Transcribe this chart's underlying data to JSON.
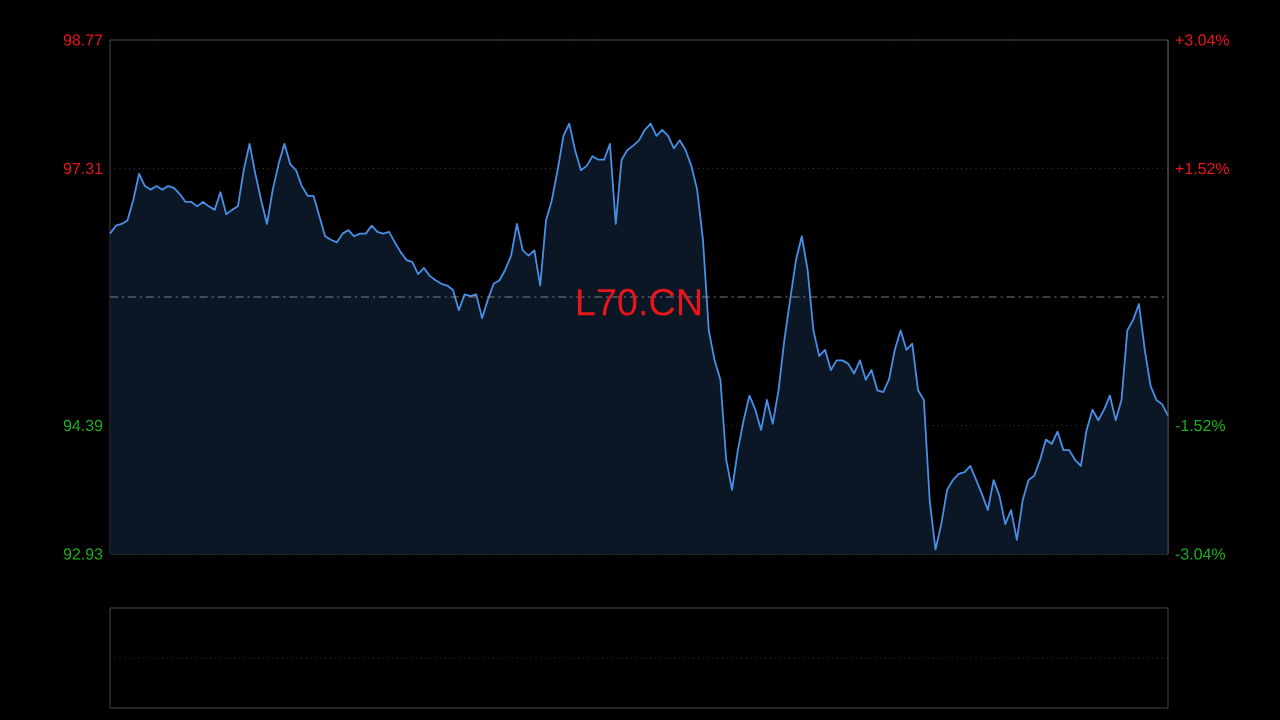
{
  "chart_data": {
    "type": "area",
    "annotations": [
      "L70.CN"
    ],
    "categories": [
      null,
      null,
      null,
      null,
      null,
      null,
      null,
      null,
      null,
      null,
      null,
      null,
      null,
      null,
      null,
      null,
      null,
      null,
      null,
      null,
      null,
      null,
      null,
      null,
      null,
      null,
      null,
      null,
      null,
      null,
      null,
      null,
      null,
      null,
      null,
      null,
      null,
      null,
      null,
      null,
      null,
      null,
      null,
      null,
      null,
      null,
      null,
      null,
      null,
      null,
      null,
      null,
      null,
      null,
      null,
      null,
      null,
      null,
      null,
      null,
      null,
      null,
      null,
      null,
      null,
      null,
      null,
      null,
      null,
      null,
      null,
      null,
      null,
      null,
      null,
      null,
      null,
      null,
      null,
      null,
      null,
      null,
      null,
      null,
      null,
      null,
      null,
      null,
      null,
      null,
      null,
      null,
      null,
      null,
      null,
      null,
      null,
      null,
      null,
      null,
      null,
      null,
      null,
      null,
      null,
      null,
      null,
      null,
      null,
      null,
      null,
      null,
      null,
      null,
      null,
      null,
      null,
      null,
      null,
      null,
      null,
      null,
      null,
      null,
      null,
      null,
      null,
      null,
      null,
      null,
      null,
      null,
      null,
      null,
      null,
      null,
      null,
      null,
      null,
      null,
      null,
      null,
      null,
      null,
      null,
      null,
      null,
      null,
      null,
      null,
      null,
      null,
      null,
      null,
      null,
      null,
      null,
      null,
      null,
      null,
      null,
      null,
      null,
      null,
      null,
      null,
      null,
      null,
      null,
      null,
      null,
      null,
      null,
      null,
      null,
      null,
      null,
      null,
      null,
      null,
      null,
      null,
      null
    ],
    "values": [
      96.57,
      96.66,
      96.68,
      96.72,
      96.95,
      97.25,
      97.11,
      97.07,
      97.11,
      97.07,
      97.11,
      97.09,
      97.02,
      96.93,
      96.93,
      96.88,
      96.93,
      96.88,
      96.84,
      97.04,
      96.79,
      96.84,
      96.88,
      97.29,
      97.59,
      97.25,
      96.95,
      96.68,
      97.07,
      97.36,
      97.59,
      97.36,
      97.29,
      97.11,
      97.0,
      97.0,
      96.77,
      96.54,
      96.5,
      96.47,
      96.57,
      96.61,
      96.54,
      96.57,
      96.57,
      96.66,
      96.59,
      96.57,
      96.59,
      96.47,
      96.36,
      96.27,
      96.25,
      96.11,
      96.18,
      96.09,
      96.04,
      96.0,
      95.98,
      95.93,
      95.7,
      95.88,
      95.86,
      95.88,
      95.61,
      95.82,
      96.0,
      96.04,
      96.16,
      96.32,
      96.68,
      96.38,
      96.32,
      96.38,
      95.98,
      96.72,
      96.95,
      97.29,
      97.68,
      97.82,
      97.52,
      97.29,
      97.34,
      97.45,
      97.41,
      97.41,
      97.59,
      96.68,
      97.41,
      97.52,
      97.57,
      97.63,
      97.75,
      97.82,
      97.68,
      97.75,
      97.68,
      97.54,
      97.63,
      97.52,
      97.34,
      97.07,
      96.5,
      95.47,
      95.13,
      94.91,
      94.0,
      93.66,
      94.11,
      94.45,
      94.73,
      94.57,
      94.34,
      94.68,
      94.41,
      94.79,
      95.36,
      95.82,
      96.27,
      96.54,
      96.16,
      95.47,
      95.18,
      95.25,
      95.02,
      95.13,
      95.13,
      95.09,
      94.98,
      95.13,
      94.91,
      95.02,
      94.79,
      94.77,
      94.91,
      95.25,
      95.47,
      95.25,
      95.32,
      94.79,
      94.68,
      93.54,
      92.98,
      93.27,
      93.66,
      93.77,
      93.84,
      93.86,
      93.93,
      93.77,
      93.61,
      93.43,
      93.77,
      93.59,
      93.27,
      93.43,
      93.09,
      93.54,
      93.77,
      93.82,
      94.0,
      94.23,
      94.18,
      94.32,
      94.11,
      94.11,
      94.0,
      93.93,
      94.34,
      94.57,
      94.45,
      94.57,
      94.73,
      94.45,
      94.68,
      95.47,
      95.59,
      95.77,
      95.25,
      94.84,
      94.68,
      94.63,
      94.5
    ],
    "color": "#4a8fe7",
    "ylim": [
      92.93,
      98.77
    ],
    "yticks": [
      92.93,
      94.39,
      97.31,
      98.77
    ],
    "y2lim": [
      -3.04,
      3.04
    ],
    "y2ticks": [
      {
        "value": -3.04,
        "label": "-3.04%"
      },
      {
        "value": -1.52,
        "label": "-1.52%"
      },
      {
        "value": 1.52,
        "label": "+1.52%"
      },
      {
        "value": 3.04,
        "label": "+3.04%"
      }
    ],
    "ref_lines": [
      {
        "axis": "y",
        "value": 95.85,
        "color": "#9a9a9a",
        "line_style": "dashed"
      }
    ],
    "grid": "y"
  }
}
